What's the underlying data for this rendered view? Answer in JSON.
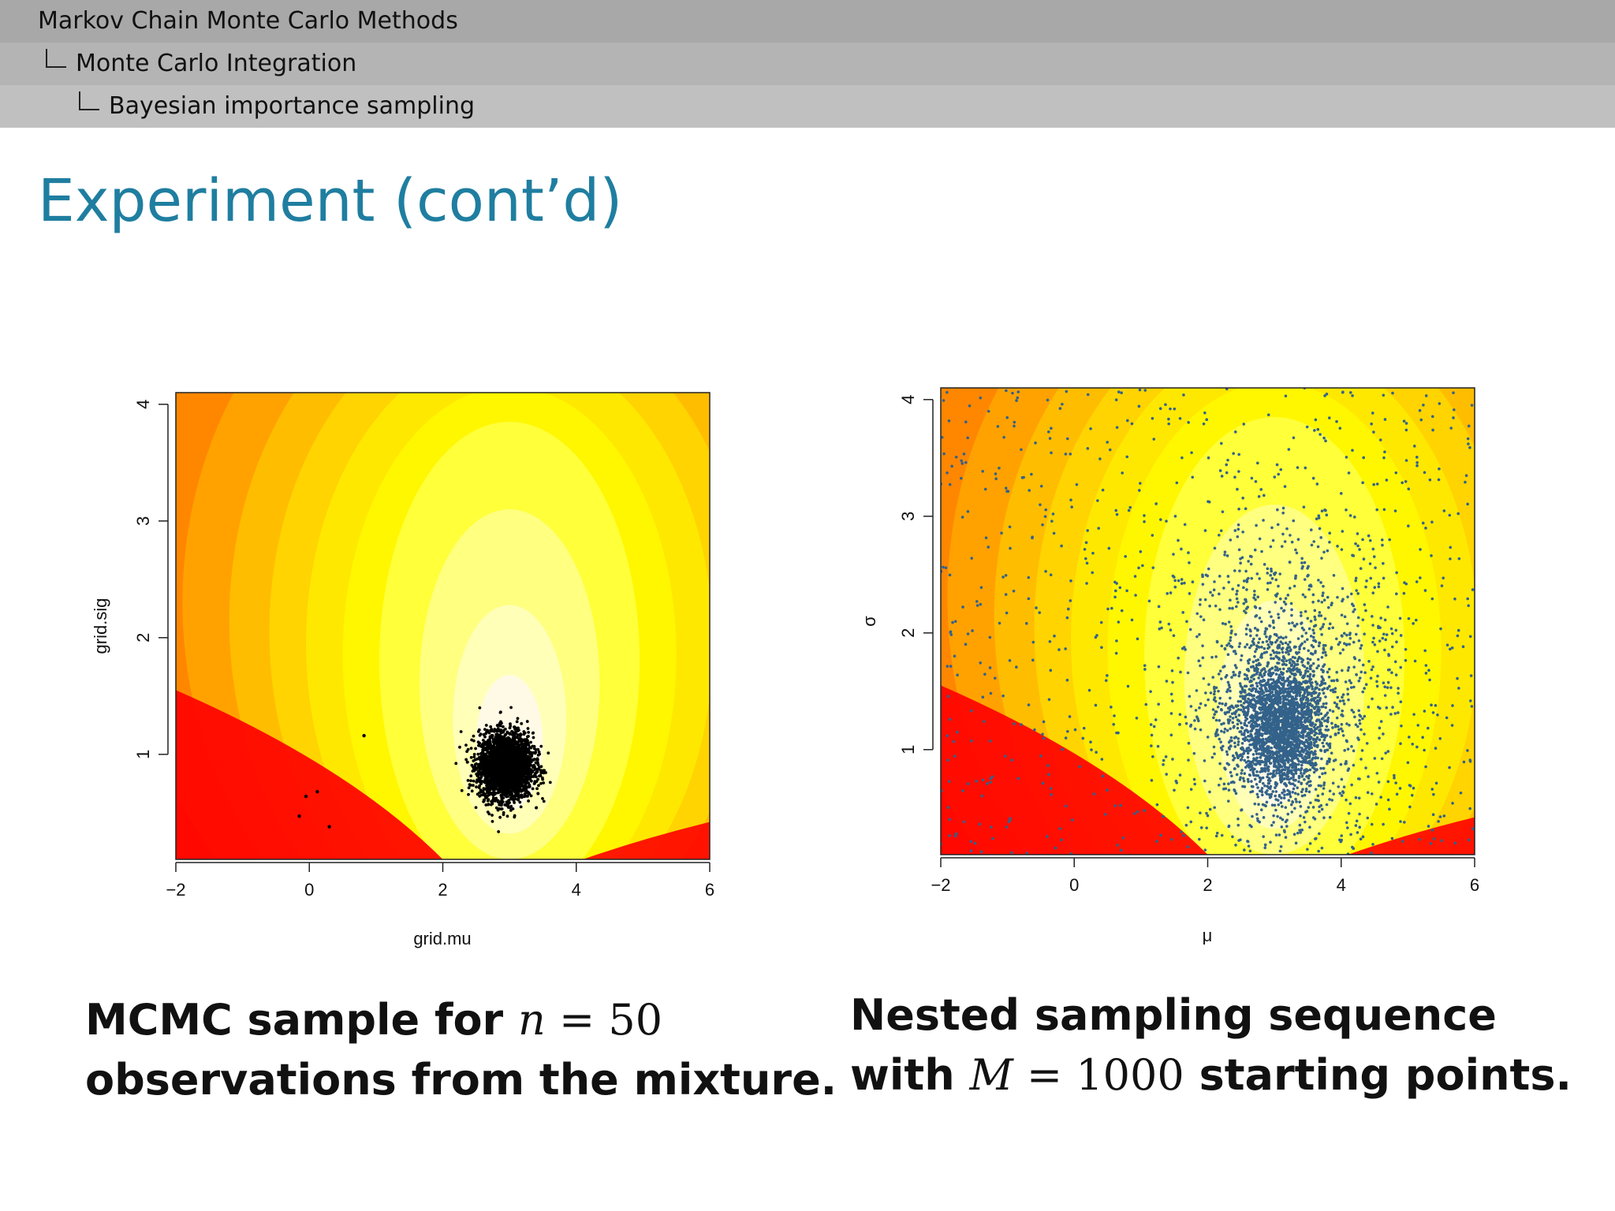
{
  "nav": {
    "level1": "Markov Chain Monte Carlo Methods",
    "level2": "Monte Carlo Integration",
    "level3": "Bayesian importance sampling"
  },
  "slide_title": "Experiment (cont’d)",
  "captions": {
    "left": {
      "line1_prefix": "MCMC sample for ",
      "line1_var": "n",
      "line1_eq": " = 50",
      "line2": "observations from the mixture."
    },
    "right": {
      "line1": "Nested sampling sequence",
      "line2_prefix": "with ",
      "line2_var": "M",
      "line2_eq": " = 1000",
      "line2_suffix": " starting points."
    }
  },
  "colors": {
    "title": "#1f7ea0",
    "mcmc_points": "#000000",
    "nested_points": "#33628a",
    "heat_low": "#ff0000",
    "heat_high": "#fffae6"
  },
  "chart_data": [
    {
      "type": "scatter",
      "background": "heatmap",
      "xlabel": "grid.mu",
      "ylabel": "grid.sig",
      "xlim": [
        -2,
        6
      ],
      "ylim": [
        0.1,
        4.1
      ],
      "xticks": [
        "−2",
        "0",
        "2",
        "4",
        "6"
      ],
      "xtick_values": [
        -2,
        0,
        2,
        4,
        6
      ],
      "yticks": [
        "1",
        "2",
        "3",
        "4"
      ],
      "ytick_values": [
        1,
        2,
        3,
        4
      ],
      "cluster": {
        "center": [
          2.95,
          0.9
        ],
        "spread": [
          0.2,
          0.14
        ],
        "count": 3000
      },
      "outliers": [
        [
          0.82,
          1.16
        ],
        [
          -0.15,
          0.47
        ],
        [
          -0.05,
          0.64
        ],
        [
          0.12,
          0.68
        ],
        [
          0.3,
          0.38
        ]
      ]
    },
    {
      "type": "scatter",
      "background": "heatmap",
      "xlabel": "μ",
      "ylabel": "σ",
      "xlim": [
        -2,
        6
      ],
      "ylim": [
        0.1,
        4.1
      ],
      "xticks": [
        "−2",
        "0",
        "2",
        "4",
        "6"
      ],
      "xtick_values": [
        -2,
        0,
        2,
        4,
        6
      ],
      "yticks": [
        "1",
        "2",
        "3",
        "4"
      ],
      "ytick_values": [
        1,
        2,
        3,
        4
      ],
      "dense_cluster": {
        "center": [
          3.1,
          1.2
        ],
        "spread": [
          0.33,
          0.28
        ],
        "count": 2200
      },
      "mid_cloud": {
        "center": [
          3.2,
          1.5
        ],
        "spread": [
          0.8,
          0.7
        ],
        "count": 1100
      },
      "uniform_points": 800
    }
  ]
}
